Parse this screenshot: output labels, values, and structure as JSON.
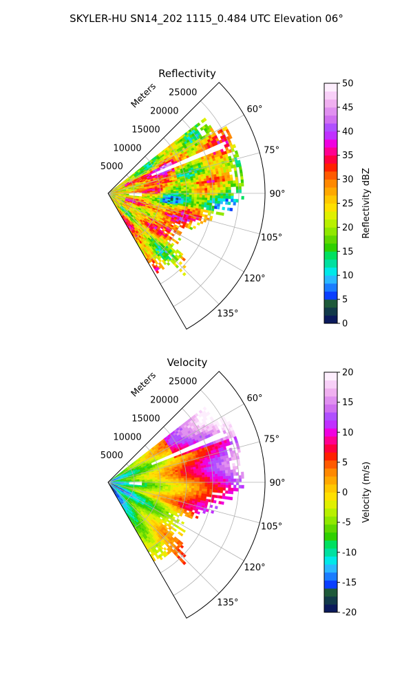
{
  "figure": {
    "title": "SKYLER-HU  SN14_202  1115_0.484 UTC Elevation 06°"
  },
  "chart_data": [
    {
      "type": "heatmap",
      "projection": "polar-sector",
      "title": "Reflectivity",
      "range_label": "Meters",
      "range_ticks": [
        5000,
        10000,
        15000,
        20000,
        25000
      ],
      "range_max": 30000,
      "azimuth_range_deg": [
        45,
        150
      ],
      "azimuth_ticks_deg": [
        60,
        75,
        90,
        105,
        120,
        135
      ],
      "azimuth_tick_labels": [
        "60°",
        "75°",
        "90°",
        "105°",
        "120°",
        "135°"
      ],
      "grid": true,
      "colorbar": {
        "label": "Reflectivity dBZ",
        "min": 0,
        "max": 50,
        "ticks": [
          0,
          5,
          10,
          15,
          20,
          25,
          30,
          35,
          40,
          45,
          50
        ],
        "colors": [
          "#0b1a5c",
          "#123a4a",
          "#1e5a3a",
          "#0a3fff",
          "#1a7cff",
          "#2ab8ff",
          "#00e8e8",
          "#00e0a0",
          "#00e060",
          "#30d000",
          "#60d800",
          "#90e800",
          "#b8f000",
          "#e0f000",
          "#ffe000",
          "#ffc800",
          "#ffa800",
          "#ff8800",
          "#ff5a00",
          "#ff2000",
          "#ff0040",
          "#ff0090",
          "#f000e0",
          "#c030ff",
          "#b050ff",
          "#d070f0",
          "#e090f0",
          "#f0b0f0",
          "#f8d0f8",
          "#fdeefd"
        ]
      }
    },
    {
      "type": "heatmap",
      "projection": "polar-sector",
      "title": "Velocity",
      "range_label": "Meters",
      "range_ticks": [
        5000,
        10000,
        15000,
        20000,
        25000
      ],
      "range_max": 30000,
      "azimuth_range_deg": [
        45,
        150
      ],
      "azimuth_ticks_deg": [
        60,
        75,
        90,
        105,
        120,
        135
      ],
      "azimuth_tick_labels": [
        "60°",
        "75°",
        "90°",
        "105°",
        "120°",
        "135°"
      ],
      "grid": true,
      "colorbar": {
        "label": "Velocity (m/s)",
        "min": -20,
        "max": 20,
        "ticks": [
          -20,
          -15,
          -10,
          -5,
          0,
          5,
          10,
          15,
          20
        ],
        "colors": [
          "#0b1a5c",
          "#123a4a",
          "#1e5a3a",
          "#0a3fff",
          "#1a7cff",
          "#2ab8ff",
          "#00e8e8",
          "#00e0a0",
          "#00e060",
          "#30d000",
          "#60d800",
          "#90e800",
          "#b8f000",
          "#e0f000",
          "#ffe000",
          "#ffc800",
          "#ffa800",
          "#ff8800",
          "#ff5a00",
          "#ff2000",
          "#ff0040",
          "#ff0090",
          "#f000e0",
          "#c030ff",
          "#b050ff",
          "#d070f0",
          "#e090f0",
          "#f0b0f0",
          "#f8d0f8",
          "#fdeefd"
        ]
      }
    }
  ]
}
